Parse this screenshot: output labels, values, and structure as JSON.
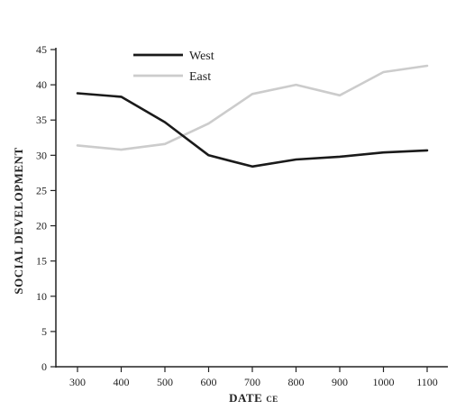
{
  "chart_data": {
    "type": "line",
    "xlabel": "DATE",
    "xlabel_suffix": "CE",
    "ylabel": "SOCIAL DEVELOPMENT",
    "x": [
      300,
      400,
      500,
      600,
      700,
      800,
      900,
      1000,
      1100
    ],
    "xlim": [
      300,
      1100
    ],
    "ylim": [
      0,
      45
    ],
    "yticks": [
      0,
      5,
      10,
      15,
      20,
      25,
      30,
      35,
      40,
      45
    ],
    "grid": false,
    "legend_position": "top-left",
    "series": [
      {
        "name": "West",
        "color": "#1a1a1a",
        "values": [
          38.8,
          38.3,
          34.7,
          30.0,
          28.4,
          29.4,
          29.8,
          30.4,
          30.7
        ]
      },
      {
        "name": "East",
        "color": "#cccccc",
        "values": [
          31.4,
          30.8,
          31.6,
          34.5,
          38.7,
          40.0,
          38.5,
          41.8,
          42.7
        ]
      }
    ]
  }
}
